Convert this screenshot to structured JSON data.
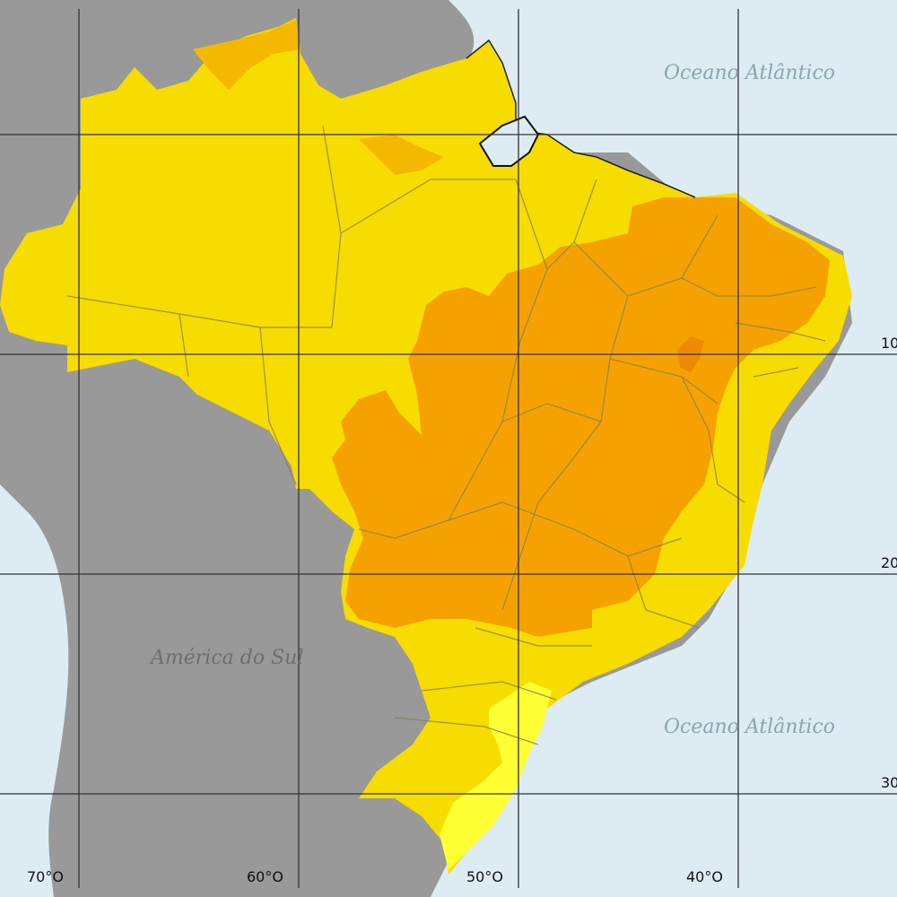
{
  "map": {
    "labels": {
      "ocean_north": "Oceano Atlântico",
      "ocean_south": "Oceano Atlântico",
      "continent": "América do Sul"
    },
    "longitude_labels": [
      "70°O",
      "60°O",
      "50°O",
      "40°O"
    ],
    "latitude_labels": [
      "10",
      "20",
      "30"
    ],
    "colors": {
      "ocean": "#dcecf2",
      "land_other": "#999999",
      "zone_light_yellow": "#ffff33",
      "zone_yellow": "#f7dc00",
      "zone_light_orange": "#f5b800",
      "zone_orange": "#f5a200",
      "zone_dark_orange": "#ee8a00",
      "graticule": "#333333",
      "state_border": "#8a7a5a",
      "label_text": "#8aa6b2"
    }
  }
}
